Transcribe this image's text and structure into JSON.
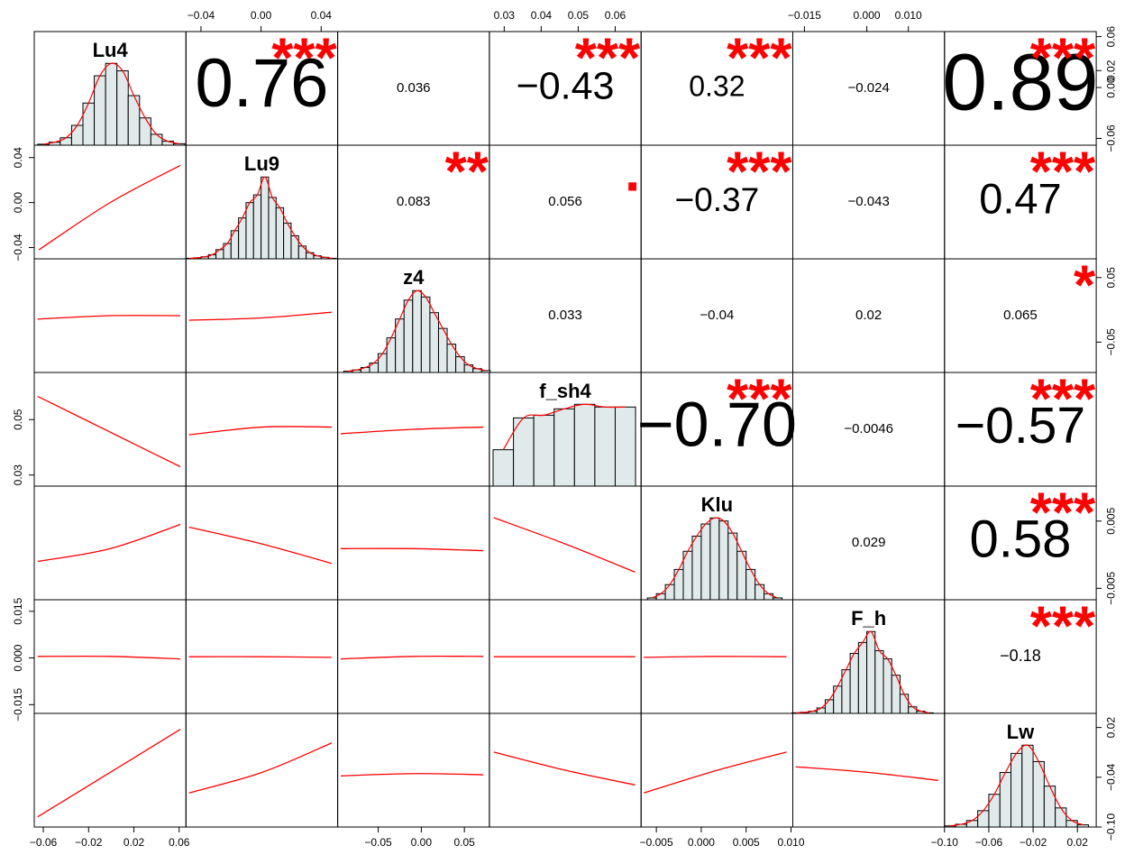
{
  "chart_data": {
    "type": "pairs",
    "variables": [
      {
        "name": "Lu4",
        "lim": [
          -0.068,
          0.066
        ],
        "xticks": [
          {
            "value": -0.06,
            "label": "−0.06"
          },
          {
            "value": -0.02,
            "label": "−0.02"
          },
          0.02,
          0.06
        ],
        "yticks": [
          0.06,
          0.02,
          {
            "value": 0,
            "label": "0.00"
          },
          {
            "value": -0.06,
            "label": "−0.06"
          }
        ],
        "hist": {
          "bins": [
            -0.065,
            -0.055,
            -0.045,
            -0.035,
            -0.025,
            -0.015,
            -0.005,
            0.005,
            0.015,
            0.025,
            0.035,
            0.045,
            0.055,
            0.065
          ],
          "counts": [
            2,
            6,
            15,
            40,
            85,
            140,
            165,
            150,
            100,
            55,
            22,
            8,
            3
          ]
        }
      },
      {
        "name": "Lu9",
        "lim": [
          -0.05,
          0.051
        ],
        "xticks": [
          {
            "value": -0.04,
            "label": "−0.04"
          },
          {
            "value": 0,
            "label": "0.00"
          },
          0.04
        ],
        "yticks": [
          0.04,
          {
            "value": 0,
            "label": "0.00"
          },
          {
            "value": -0.04,
            "label": "−0.04"
          }
        ],
        "hist": {
          "bins": [
            -0.05,
            -0.045,
            -0.04,
            -0.035,
            -0.03,
            -0.025,
            -0.02,
            -0.015,
            -0.01,
            -0.005,
            0,
            0.005,
            0.01,
            0.015,
            0.02,
            0.025,
            0.03,
            0.035,
            0.04,
            0.045,
            0.05
          ],
          "counts": [
            1,
            2,
            4,
            8,
            18,
            30,
            55,
            80,
            110,
            125,
            160,
            120,
            100,
            70,
            45,
            25,
            12,
            6,
            3,
            1
          ]
        }
      },
      {
        "name": "z4",
        "lim": [
          -0.097,
          0.079
        ],
        "xticks": [
          {
            "value": -0.05,
            "label": "−0.05"
          },
          {
            "value": 0,
            "label": "0.00"
          },
          0.05
        ],
        "yticks": [
          0.05,
          {
            "value": -0.05,
            "label": "−0.05"
          }
        ],
        "hist": {
          "bins": [
            -0.09,
            -0.08,
            -0.07,
            -0.06,
            -0.05,
            -0.04,
            -0.03,
            -0.02,
            -0.01,
            0,
            0.01,
            0.02,
            0.03,
            0.04,
            0.05,
            0.06,
            0.07,
            0.08
          ],
          "counts": [
            2,
            4,
            8,
            15,
            30,
            55,
            85,
            115,
            130,
            120,
            95,
            70,
            45,
            25,
            12,
            6,
            3
          ]
        }
      },
      {
        "name": "f_sh4",
        "lim": [
          0.026,
          0.067
        ],
        "xticks": [
          0.03,
          0.04,
          0.05,
          0.06
        ],
        "yticks": [
          0.05,
          0.03
        ],
        "hist": {
          "bins": [
            0.027,
            0.0325,
            0.038,
            0.0435,
            0.049,
            0.0545,
            0.06,
            0.0655
          ],
          "counts": [
            40,
            75,
            78,
            85,
            90,
            87,
            87
          ]
        }
      },
      {
        "name": "Klu",
        "lim": [
          -0.0067,
          0.0102
        ],
        "xticks": [
          {
            "value": -0.005,
            "label": "−0.005"
          },
          {
            "value": 0,
            "label": "0.000"
          },
          0.005,
          {
            "value": 0.01,
            "label": "0.010"
          }
        ],
        "yticks": [
          0.005,
          {
            "value": -0.005,
            "label": "−0.005"
          }
        ],
        "hist": {
          "bins": [
            -0.006,
            -0.005,
            -0.004,
            -0.003,
            -0.002,
            -0.001,
            0,
            0.001,
            0.002,
            0.003,
            0.004,
            0.005,
            0.006,
            0.007,
            0.008,
            0.009
          ],
          "counts": [
            3,
            10,
            25,
            50,
            80,
            105,
            125,
            135,
            130,
            110,
            80,
            50,
            25,
            10,
            3
          ]
        }
      },
      {
        "name": "F_h",
        "lim": [
          -0.0178,
          0.0187
        ],
        "xticks": [
          {
            "value": -0.015,
            "label": "−0.015"
          },
          {
            "value": 0,
            "label": "0.000"
          },
          {
            "value": 0.01,
            "label": "0.010"
          }
        ],
        "yticks": [
          0.015,
          {
            "value": 0,
            "label": "0.000"
          },
          {
            "value": -0.015,
            "label": "−0.015"
          }
        ],
        "hist": {
          "bins": [
            -0.018,
            -0.016,
            -0.014,
            -0.012,
            -0.01,
            -0.008,
            -0.006,
            -0.004,
            -0.002,
            0,
            0.002,
            0.004,
            0.006,
            0.008,
            0.01,
            0.012,
            0.014,
            0.016
          ],
          "counts": [
            1,
            2,
            4,
            10,
            25,
            50,
            80,
            110,
            130,
            150,
            115,
            100,
            70,
            35,
            12,
            4,
            1
          ]
        }
      },
      {
        "name": "Lw",
        "lim": [
          -0.1,
          0.037
        ],
        "xticks": [
          {
            "value": -0.1,
            "label": "−0.10"
          },
          {
            "value": -0.06,
            "label": "−0.06"
          },
          {
            "value": -0.02,
            "label": "−0.02"
          },
          0.02
        ],
        "yticks": [
          0.02,
          {
            "value": -0.04,
            "label": "−0.04"
          },
          {
            "value": -0.1,
            "label": "−0.10"
          }
        ],
        "hist": {
          "bins": [
            -0.1,
            -0.09,
            -0.08,
            -0.07,
            -0.06,
            -0.05,
            -0.04,
            -0.03,
            -0.02,
            -0.01,
            0,
            0.01,
            0.02,
            0.03
          ],
          "counts": [
            2,
            5,
            12,
            30,
            60,
            100,
            135,
            150,
            120,
            75,
            35,
            12,
            4
          ]
        }
      }
    ],
    "correlations": {
      "values": [
        [
          0.76,
          0.036,
          -0.43,
          0.32,
          -0.024,
          0.89
        ],
        [
          0.083,
          0.056,
          -0.37,
          -0.043,
          0.47
        ],
        [
          0.033,
          -0.04,
          0.02,
          0.065
        ],
        [
          -0.7,
          -0.0046,
          -0.57
        ],
        [
          0.029,
          0.58
        ],
        [
          -0.18
        ]
      ],
      "value_labels": [
        [
          "0.76",
          "0.036",
          "−0.43",
          "0.32",
          "−0.024",
          "0.89"
        ],
        [
          "0.083",
          "0.056",
          "−0.37",
          "−0.043",
          "0.47"
        ],
        [
          "0.033",
          "−0.04",
          "0.02",
          "0.065"
        ],
        [
          "−0.70",
          "−0.0046",
          "−0.57"
        ],
        [
          "0.029",
          "0.58"
        ],
        [
          "−0.18"
        ]
      ],
      "stars": [
        [
          "***",
          null,
          "***",
          "***",
          null,
          "***"
        ],
        [
          "**",
          ".",
          "***",
          null,
          "***"
        ],
        [
          null,
          null,
          null,
          "*"
        ],
        [
          "***",
          null,
          "***"
        ],
        [
          null,
          "***"
        ],
        [
          "***"
        ]
      ],
      "star_color": "#ff0000"
    },
    "smooths": [
      [
        {
          "x": [
            -0.064,
            -0.001,
            0.061
          ],
          "y": [
            -0.042,
            0,
            0.033
          ]
        }
      ],
      [
        {
          "x": [
            -0.065,
            -0.001,
            0.061
          ],
          "y": [
            -0.0143,
            -0.009,
            -0.009
          ]
        },
        {
          "x": [
            -0.048,
            0.0005,
            0.047
          ],
          "y": [
            -0.016,
            -0.0125,
            -0.0037
          ]
        }
      ],
      [
        {
          "x": [
            -0.065,
            -0.002,
            0.061
          ],
          "y": [
            0.0584,
            0.0457,
            0.033
          ]
        },
        {
          "x": [
            -0.048,
            0.0005,
            0.047
          ],
          "y": [
            0.0445,
            0.0473,
            0.0473
          ]
        },
        {
          "x": [
            -0.0935,
            -0.009,
            0.072
          ],
          "y": [
            0.0449,
            0.0465,
            0.0473
          ]
        }
      ],
      [
        {
          "x": [
            -0.065,
            -0.001,
            0.061
          ],
          "y": [
            -0.001,
            0.0009,
            0.0045
          ]
        },
        {
          "x": [
            -0.048,
            0.0005,
            0.047
          ],
          "y": [
            0.0041,
            0.0016,
            -0.0013
          ]
        },
        {
          "x": [
            -0.0935,
            -0.009,
            0.072
          ],
          "y": [
            0.0009,
            0.0009,
            0.0006
          ]
        },
        {
          "x": [
            0.0272,
            0.0465,
            0.0654
          ],
          "y": [
            0.0055,
            0.0016,
            -0.0026
          ]
        }
      ],
      [
        {
          "x": [
            -0.065,
            -0.001,
            0.061
          ],
          "y": [
            0.0005,
            0.0005,
            -0.0003
          ]
        },
        {
          "x": [
            -0.048,
            0.0005,
            0.047
          ],
          "y": [
            0.0004,
            0.0004,
            0.0002
          ]
        },
        {
          "x": [
            -0.0935,
            -0.009,
            0.072
          ],
          "y": [
            -0.0003,
            0.0005,
            0.0005
          ]
        },
        {
          "x": [
            0.0272,
            0.0465,
            0.0654
          ],
          "y": [
            0.0004,
            0.0004,
            0.0004
          ]
        },
        {
          "x": [
            -0.0064,
            0.0018,
            0.0095
          ],
          "y": [
            0.0002,
            0.0005,
            0.0004
          ]
        }
      ],
      [
        {
          "x": [
            -0.065,
            -0.001,
            0.061
          ],
          "y": [
            -0.0877,
            -0.0342,
            0.0178
          ]
        },
        {
          "x": [
            -0.048,
            0.0005,
            0.047
          ],
          "y": [
            -0.0589,
            -0.0342,
            0.0014
          ]
        },
        {
          "x": [
            -0.0935,
            -0.009,
            0.072
          ],
          "y": [
            -0.0384,
            -0.0356,
            -0.037
          ]
        },
        {
          "x": [
            0.0272,
            0.0465,
            0.0654
          ],
          "y": [
            -0.0096,
            -0.0315,
            -0.0493
          ]
        },
        {
          "x": [
            -0.0064,
            0.0018,
            0.0095
          ],
          "y": [
            -0.0589,
            -0.0315,
            -0.0096
          ]
        },
        {
          "x": [
            -0.0171,
            0.0005,
            0.0172
          ],
          "y": [
            -0.0274,
            -0.0342,
            -0.0438
          ]
        }
      ]
    ],
    "hist_fill": "#e0eaea",
    "smooth_color": "#ff0000"
  }
}
